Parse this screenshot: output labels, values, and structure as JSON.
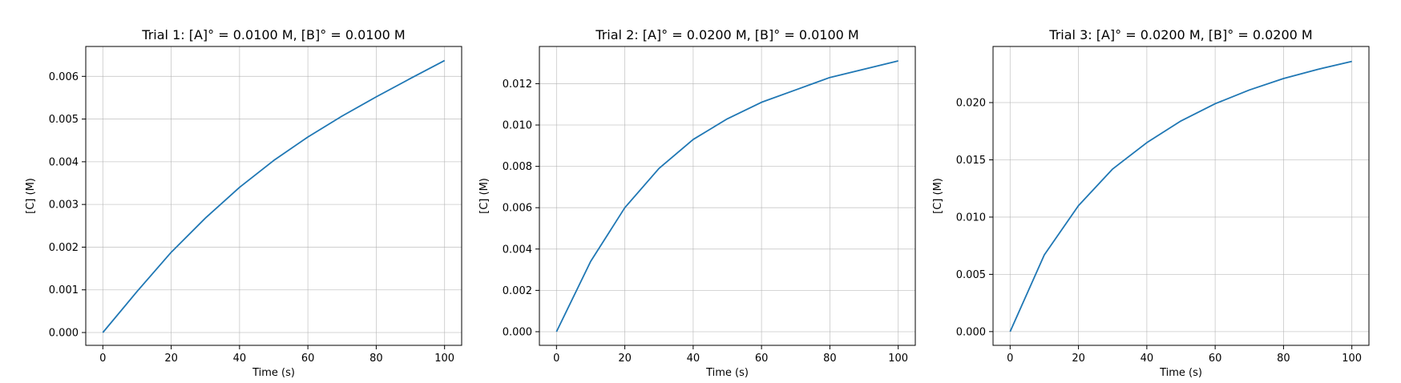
{
  "chart_data": [
    {
      "type": "line",
      "title": "Trial 1: [A]° = 0.0100 M, [B]° = 0.0100 M",
      "xlabel": "Time (s)",
      "ylabel": "[C] (M)",
      "xlim": [
        -5,
        105
      ],
      "ylim": [
        -0.0003,
        0.0067
      ],
      "xticks": [
        0,
        20,
        40,
        60,
        80,
        100
      ],
      "xtick_labels": [
        "0",
        "20",
        "40",
        "60",
        "80",
        "100"
      ],
      "yticks": [
        0.0,
        0.001,
        0.002,
        0.003,
        0.004,
        0.005,
        0.006
      ],
      "ytick_labels": [
        "0.000",
        "0.001",
        "0.002",
        "0.003",
        "0.004",
        "0.005",
        "0.006"
      ],
      "grid": true,
      "color": "#1f77b4",
      "series": [
        {
          "x": [
            0,
            10,
            20,
            30,
            40,
            50,
            60,
            70,
            80,
            90,
            100
          ],
          "y": [
            0.0,
            0.00096,
            0.00188,
            0.00268,
            0.0034,
            0.00403,
            0.00458,
            0.00507,
            0.00552,
            0.00595,
            0.00637
          ]
        }
      ]
    },
    {
      "type": "line",
      "title": "Trial 2: [A]° = 0.0200 M, [B]° = 0.0100 M",
      "xlabel": "Time (s)",
      "ylabel": "[C] (M)",
      "xlim": [
        -5,
        105
      ],
      "ylim": [
        -0.00066,
        0.0138
      ],
      "xticks": [
        0,
        20,
        40,
        60,
        80,
        100
      ],
      "xtick_labels": [
        "0",
        "20",
        "40",
        "60",
        "80",
        "100"
      ],
      "yticks": [
        0.0,
        0.002,
        0.004,
        0.006,
        0.008,
        0.01,
        0.012
      ],
      "ytick_labels": [
        "0.000",
        "0.002",
        "0.004",
        "0.006",
        "0.008",
        "0.010",
        "0.012"
      ],
      "grid": true,
      "color": "#1f77b4",
      "series": [
        {
          "x": [
            0,
            10,
            20,
            30,
            40,
            50,
            60,
            70,
            80,
            90,
            100
          ],
          "y": [
            0.0,
            0.0034,
            0.006,
            0.0079,
            0.0093,
            0.0103,
            0.0111,
            0.0117,
            0.0123,
            0.0127,
            0.0131
          ]
        }
      ]
    },
    {
      "type": "line",
      "title": "Trial 3: [A]° = 0.0200 M, [B]° = 0.0200 M",
      "xlabel": "Time (s)",
      "ylabel": "[C] (M)",
      "xlim": [
        -5,
        105
      ],
      "ylim": [
        -0.0012,
        0.0249
      ],
      "xticks": [
        0,
        20,
        40,
        60,
        80,
        100
      ],
      "xtick_labels": [
        "0",
        "20",
        "40",
        "60",
        "80",
        "100"
      ],
      "yticks": [
        0.0,
        0.005,
        0.01,
        0.015,
        0.02
      ],
      "ytick_labels": [
        "0.000",
        "0.005",
        "0.010",
        "0.015",
        "0.020"
      ],
      "grid": true,
      "color": "#1f77b4",
      "series": [
        {
          "x": [
            0,
            10,
            20,
            30,
            40,
            50,
            60,
            70,
            80,
            90,
            100
          ],
          "y": [
            0.0,
            0.0067,
            0.011,
            0.0142,
            0.0165,
            0.0184,
            0.0199,
            0.0211,
            0.0221,
            0.0229,
            0.0236
          ]
        }
      ]
    }
  ]
}
